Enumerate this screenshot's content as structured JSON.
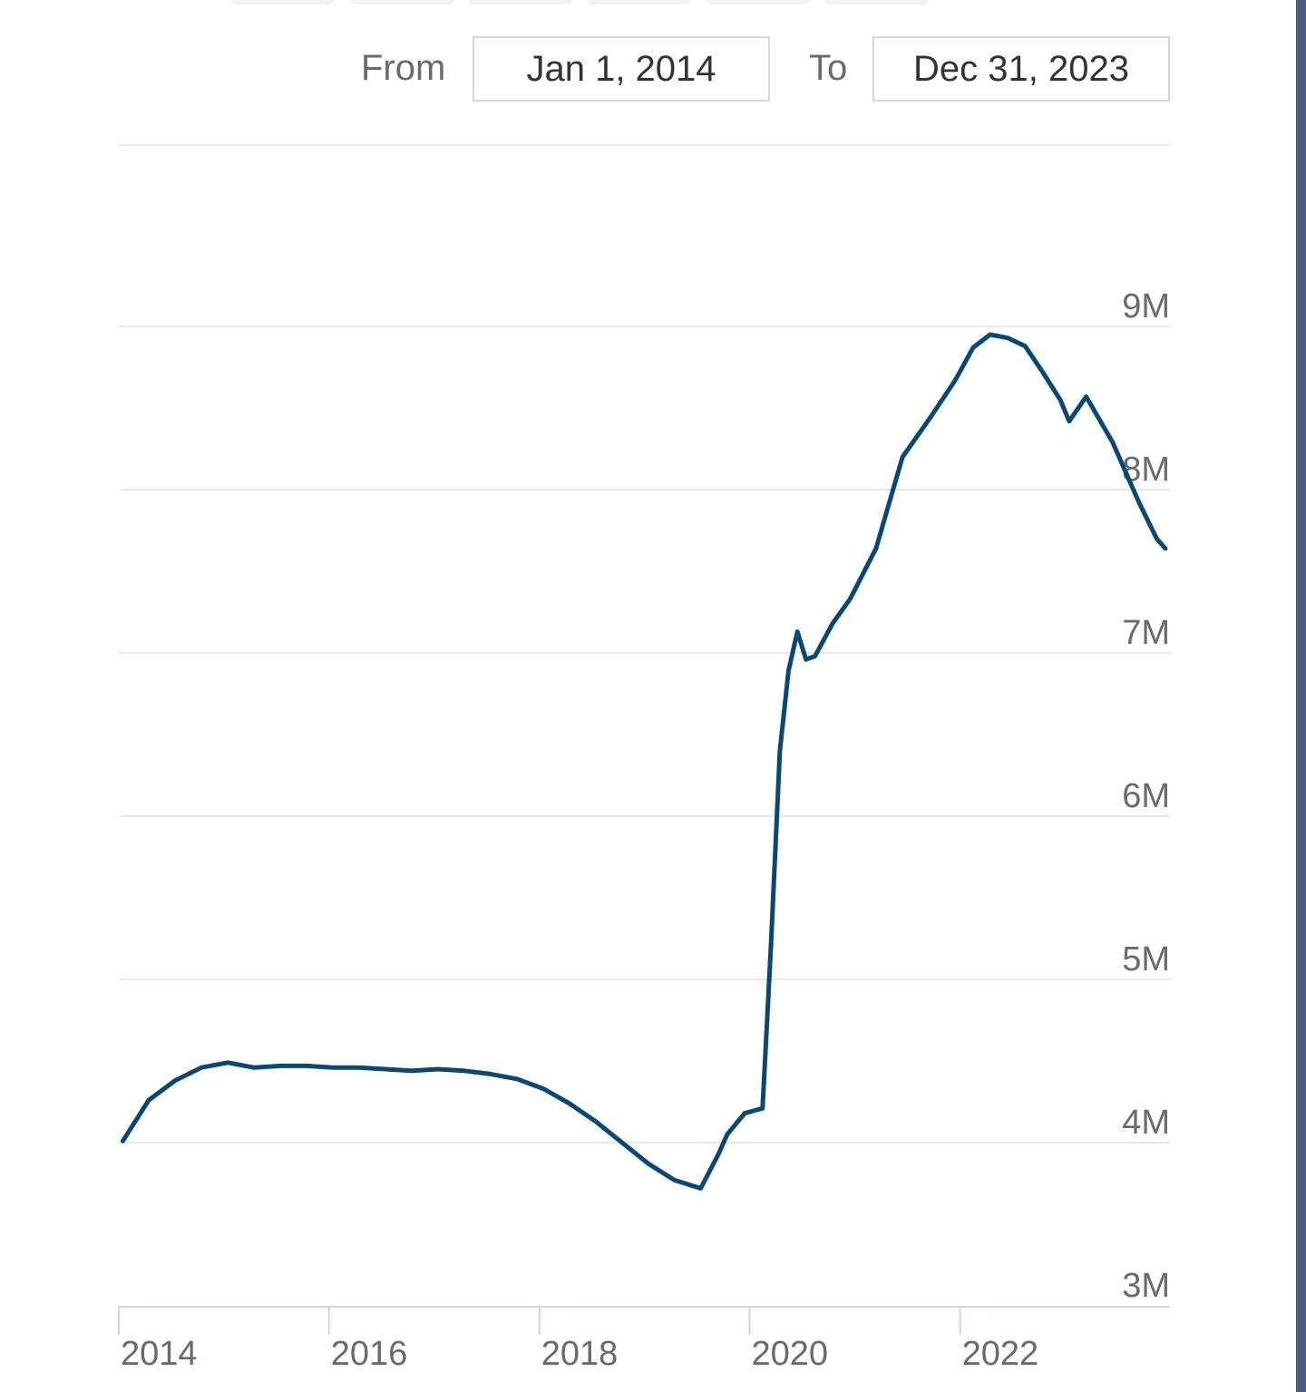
{
  "range": {
    "from_label": "From",
    "from_value": "Jan 1, 2014",
    "to_label": "To",
    "to_value": "Dec 31, 2023"
  },
  "colors": {
    "line": "#0b4774",
    "grid": "#e6e7e8",
    "axis": "#ccd6eb",
    "tick_text": "#666b70",
    "edge_bar": "#4f5d80"
  },
  "chart_data": {
    "type": "line",
    "title": "",
    "xlabel": "",
    "ylabel": "",
    "x_ticks": [
      "2014",
      "2016",
      "2018",
      "2020",
      "2022"
    ],
    "y_ticks": [
      "3M",
      "4M",
      "5M",
      "6M",
      "7M",
      "8M",
      "9M"
    ],
    "ylim": [
      3000000,
      10000000
    ],
    "xlim": [
      "2014-01-01",
      "2023-12-31"
    ],
    "grid": true,
    "legend": "none",
    "series": [
      {
        "x": [
          "2014-01",
          "2014-04",
          "2014-07",
          "2014-10",
          "2015-01",
          "2015-04",
          "2015-07",
          "2015-10",
          "2016-01",
          "2016-04",
          "2016-07",
          "2016-10",
          "2017-01",
          "2017-04",
          "2017-07",
          "2017-10",
          "2018-01",
          "2018-04",
          "2018-07",
          "2018-10",
          "2019-01",
          "2019-04",
          "2019-07",
          "2019-09",
          "2019-10",
          "2019-12",
          "2020-02",
          "2020-03",
          "2020-04",
          "2020-05",
          "2020-06",
          "2020-07",
          "2020-08",
          "2020-10",
          "2020-12",
          "2021-03",
          "2021-06",
          "2021-09",
          "2021-12",
          "2022-02",
          "2022-04",
          "2022-06",
          "2022-08",
          "2022-10",
          "2022-12",
          "2023-01",
          "2023-03",
          "2023-06",
          "2023-09",
          "2023-11",
          "2023-12"
        ],
        "values": [
          4010000,
          4260000,
          4380000,
          4460000,
          4490000,
          4460000,
          4470000,
          4470000,
          4460000,
          4460000,
          4450000,
          4440000,
          4450000,
          4440000,
          4420000,
          4390000,
          4330000,
          4240000,
          4130000,
          4000000,
          3870000,
          3770000,
          3720000,
          3930000,
          4050000,
          4180000,
          4210000,
          5200000,
          6400000,
          6890000,
          7130000,
          6960000,
          6980000,
          7180000,
          7330000,
          7640000,
          8200000,
          8430000,
          8670000,
          8870000,
          8950000,
          8930000,
          8880000,
          8720000,
          8550000,
          8420000,
          8570000,
          8290000,
          7920000,
          7700000,
          7640000
        ]
      }
    ]
  }
}
